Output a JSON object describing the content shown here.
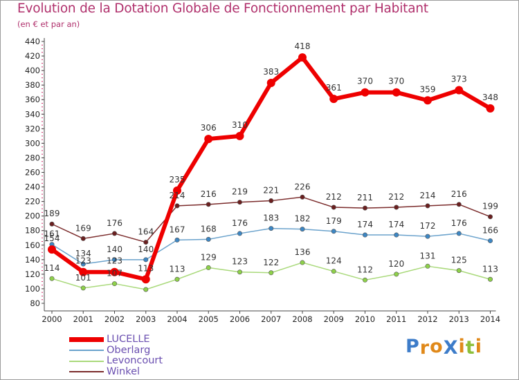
{
  "title": "Evolution de la Dotation Globale de Fonctionnement par Habitant",
  "subtitle": "(en € et par an)",
  "brand": {
    "text": "ProXiti",
    "letters": [
      {
        "ch": "P",
        "color": "#3d7cc9"
      },
      {
        "ch": "r",
        "color": "#e0891a"
      },
      {
        "ch": "o",
        "color": "#e0891a"
      },
      {
        "ch": "X",
        "color": "#3d7cc9"
      },
      {
        "ch": "i",
        "color": "#e0891a"
      },
      {
        "ch": "t",
        "color": "#8cbf3a"
      },
      {
        "ch": "i",
        "color": "#e0891a"
      }
    ]
  },
  "chart_data": {
    "type": "line",
    "title": "Evolution de la Dotation Globale de Fonctionnement par Habitant",
    "subtitle": "(en € et par an)",
    "xlabel": "",
    "ylabel": "",
    "x": [
      "2000",
      "2001",
      "2002",
      "2003",
      "2004",
      "2005",
      "2006",
      "2007",
      "2008",
      "2009",
      "2010",
      "2011",
      "2012",
      "2013",
      "2014"
    ],
    "ylim": [
      80,
      440
    ],
    "yticks": [
      80,
      100,
      120,
      140,
      160,
      180,
      200,
      220,
      240,
      260,
      280,
      300,
      320,
      340,
      360,
      380,
      400,
      420,
      440
    ],
    "grid": false,
    "legend_position": "bottom-left",
    "series": [
      {
        "name": "Winkel",
        "color": "#7a2a2a",
        "values": [
          189,
          169,
          176,
          164,
          214,
          216,
          219,
          221,
          226,
          212,
          211,
          212,
          214,
          216,
          199
        ]
      },
      {
        "name": "Oberlarg",
        "color": "#6aa2cc",
        "values": [
          161,
          134,
          140,
          140,
          167,
          168,
          176,
          183,
          182,
          179,
          174,
          174,
          172,
          176,
          166
        ]
      },
      {
        "name": "Levoncourt",
        "color": "#a9d97a",
        "values": [
          114,
          101,
          107,
          99,
          113,
          129,
          123,
          122,
          136,
          124,
          112,
          120,
          131,
          125,
          113
        ]
      },
      {
        "name": "LUCELLE",
        "color": "#ee0000",
        "values": [
          154,
          123,
          123,
          113,
          235,
          306,
          310,
          383,
          418,
          361,
          370,
          370,
          359,
          373,
          348
        ]
      }
    ],
    "labels_shown": {
      "Winkel": [
        "189",
        "169",
        "176",
        "164",
        "214",
        "216",
        "219",
        "221",
        "226",
        "212",
        "211",
        "212",
        "214",
        "216",
        "199"
      ],
      "Oberlarg": [
        "161",
        "134",
        "140",
        "140",
        "167",
        "168",
        "176",
        "183",
        "182",
        "179",
        "174",
        "174",
        "172",
        "176",
        "166"
      ],
      "Levoncourt": [
        "114",
        "101",
        "107",
        "",
        "113",
        "129",
        "123",
        "122",
        "136",
        "124",
        "112",
        "120",
        "131",
        "125",
        "113"
      ],
      "LUCELLE": [
        "154",
        "123",
        "123",
        "113",
        "235",
        "306",
        "310",
        "383",
        "418",
        "361",
        "370",
        "370",
        "359",
        "373",
        "348"
      ]
    },
    "legend": [
      {
        "name": "LUCELLE",
        "color": "#ee0000"
      },
      {
        "name": "Oberlarg",
        "color": "#6aa2cc"
      },
      {
        "name": "Levoncourt",
        "color": "#a9d97a"
      },
      {
        "name": "Winkel",
        "color": "#7a2a2a"
      }
    ],
    "colors": {
      "title": "#b0306c",
      "axis": "#444444",
      "label": "#333333",
      "tick_text": "#222222",
      "legend_text": "#6a4fb0",
      "marker_winkel": "#6a1f1f",
      "marker_oberlarg": "#3d87c4",
      "marker_levoncourt": "#8ed14a",
      "marker_lucelle": "#ee0000"
    }
  }
}
